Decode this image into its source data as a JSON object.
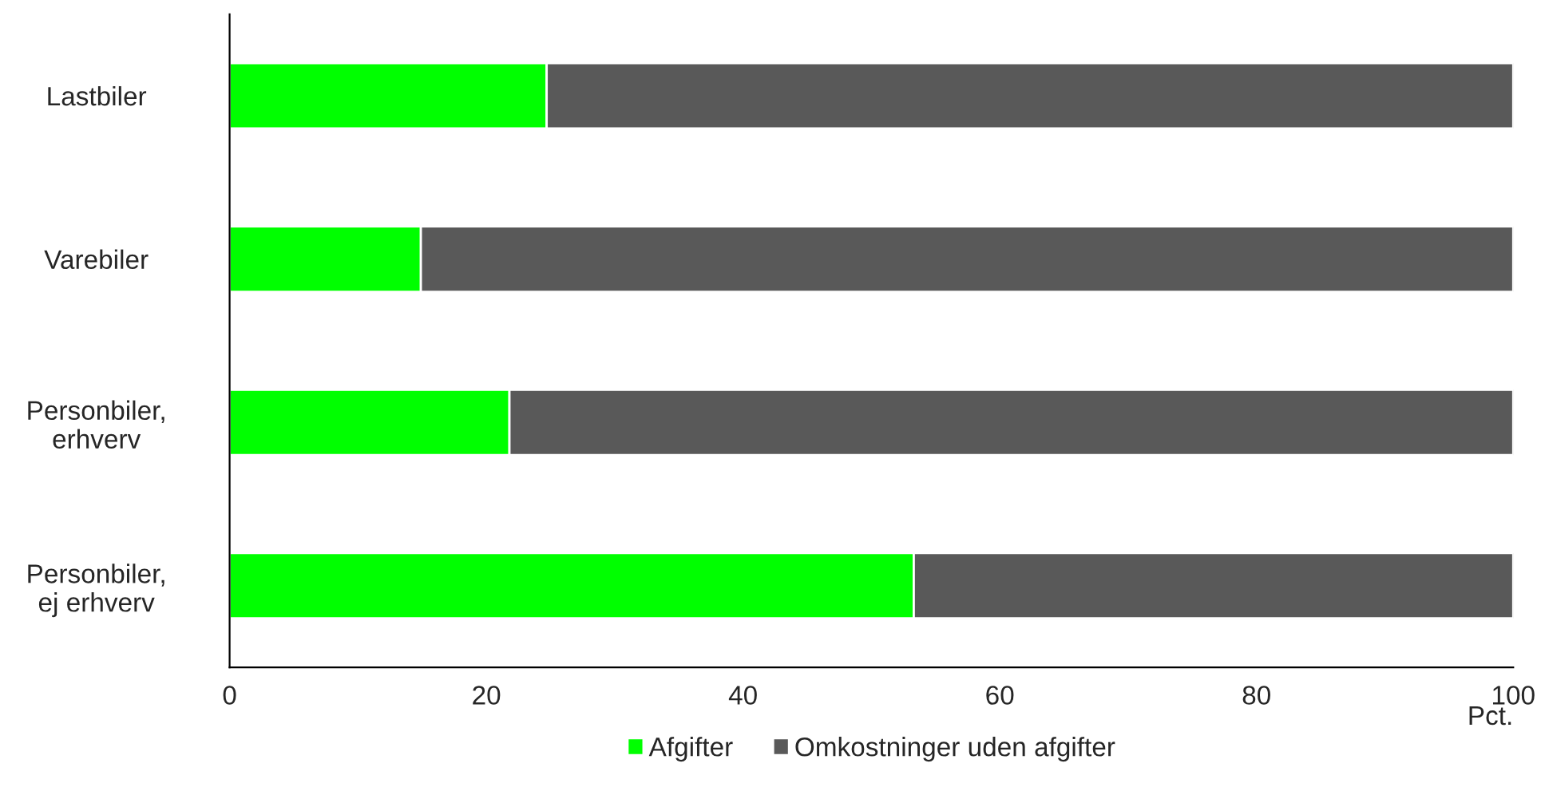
{
  "chart_data": {
    "type": "bar",
    "orientation": "horizontal",
    "stacked": true,
    "categories": [
      "Lastbiler",
      "Varebiler",
      "Personbiler,\nerhverv",
      "Personbiler,\nej erhverv"
    ],
    "series": [
      {
        "name": "Afgifter",
        "color": "#00ff00",
        "values": [
          24.7,
          14.9,
          21.8,
          53.3
        ]
      },
      {
        "name": "Omkostninger uden afgifter",
        "color": "#595959",
        "values": [
          75.3,
          85.1,
          78.2,
          46.7
        ]
      }
    ],
    "xlabel": "Pct.",
    "xlim": [
      0,
      100
    ],
    "xticks": [
      0,
      20,
      40,
      60,
      80,
      100
    ],
    "grid": false,
    "legend": "bottom"
  }
}
